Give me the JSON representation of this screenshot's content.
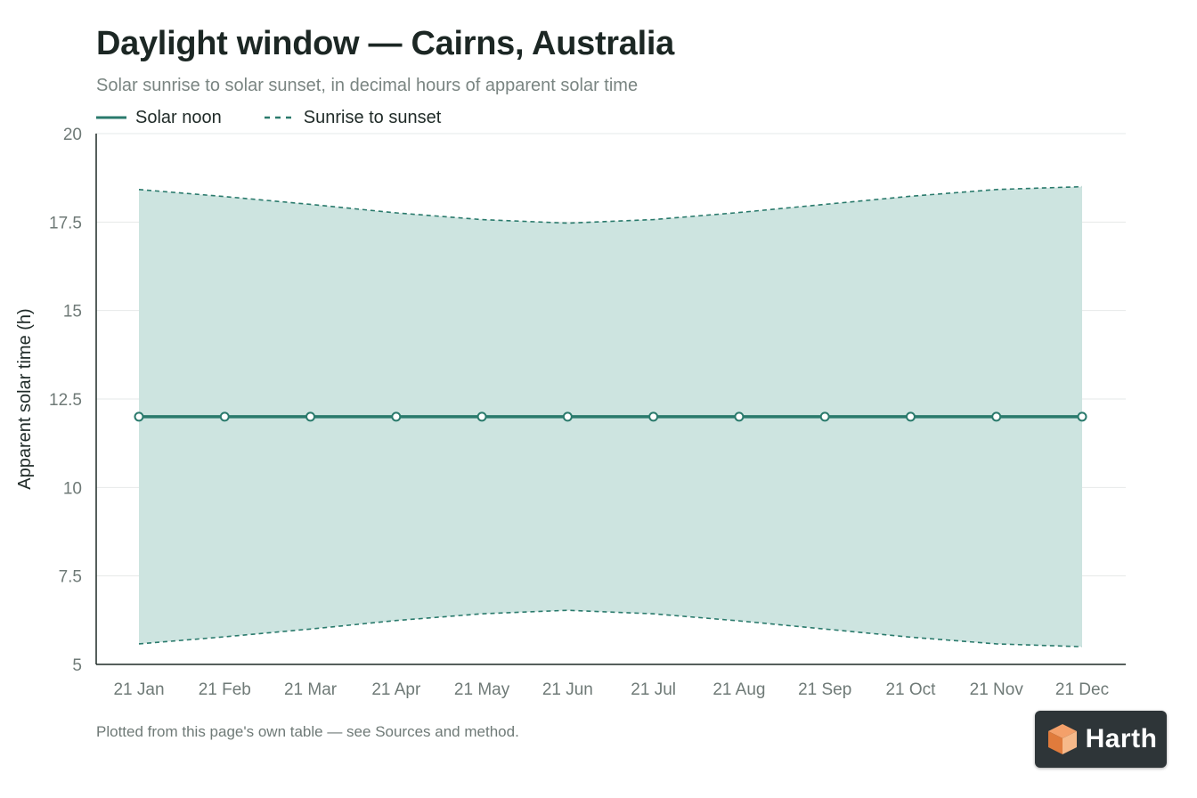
{
  "header": {
    "title": "Daylight window — Cairns, Australia",
    "subtitle": "Solar sunrise to solar sunset, in decimal hours of apparent solar time"
  },
  "legend": {
    "items": [
      {
        "label": "Solar noon",
        "style": "solid"
      },
      {
        "label": "Sunrise to sunset",
        "style": "dashed"
      }
    ]
  },
  "footnote": "Plotted from this page's own table — see Sources and method.",
  "logo": {
    "text": "Harth",
    "icon": "cube-icon"
  },
  "colors": {
    "line": "#2a7a6c",
    "band": "#cde4e0",
    "axis": "#1f2a27",
    "grid": "#e6e9e8",
    "tick": "#6f7a77"
  },
  "chart_data": {
    "type": "line",
    "title": "Daylight window — Cairns, Australia",
    "subtitle": "Solar sunrise to solar sunset, in decimal hours of apparent solar time",
    "xlabel": "",
    "ylabel": "Apparent solar time (h)",
    "ylim": [
      5,
      20
    ],
    "yticks": [
      5,
      7.5,
      10,
      12.5,
      15,
      17.5,
      20
    ],
    "ytick_labels": [
      "5",
      "7.5",
      "10",
      "12.5",
      "15",
      "17.5",
      "20"
    ],
    "grid": true,
    "legend": "top-left",
    "categories": [
      "21 Jan",
      "21 Feb",
      "21 Mar",
      "21 Apr",
      "21 May",
      "21 Jun",
      "21 Jul",
      "21 Aug",
      "21 Sep",
      "21 Oct",
      "21 Nov",
      "21 Dec"
    ],
    "series": [
      {
        "name": "Solar noon",
        "values": [
          12,
          12,
          12,
          12,
          12,
          12,
          12,
          12,
          12,
          12,
          12,
          12
        ]
      },
      {
        "name": "Sunrise to sunset",
        "role": "sunrise",
        "values": [
          5.58,
          5.78,
          6.0,
          6.24,
          6.43,
          6.53,
          6.43,
          6.23,
          6.0,
          5.77,
          5.58,
          5.5
        ]
      },
      {
        "name": "Sunrise to sunset",
        "role": "sunset",
        "values": [
          18.42,
          18.22,
          18.0,
          17.76,
          17.57,
          17.47,
          17.57,
          17.77,
          18.0,
          18.23,
          18.42,
          18.5
        ]
      }
    ]
  }
}
